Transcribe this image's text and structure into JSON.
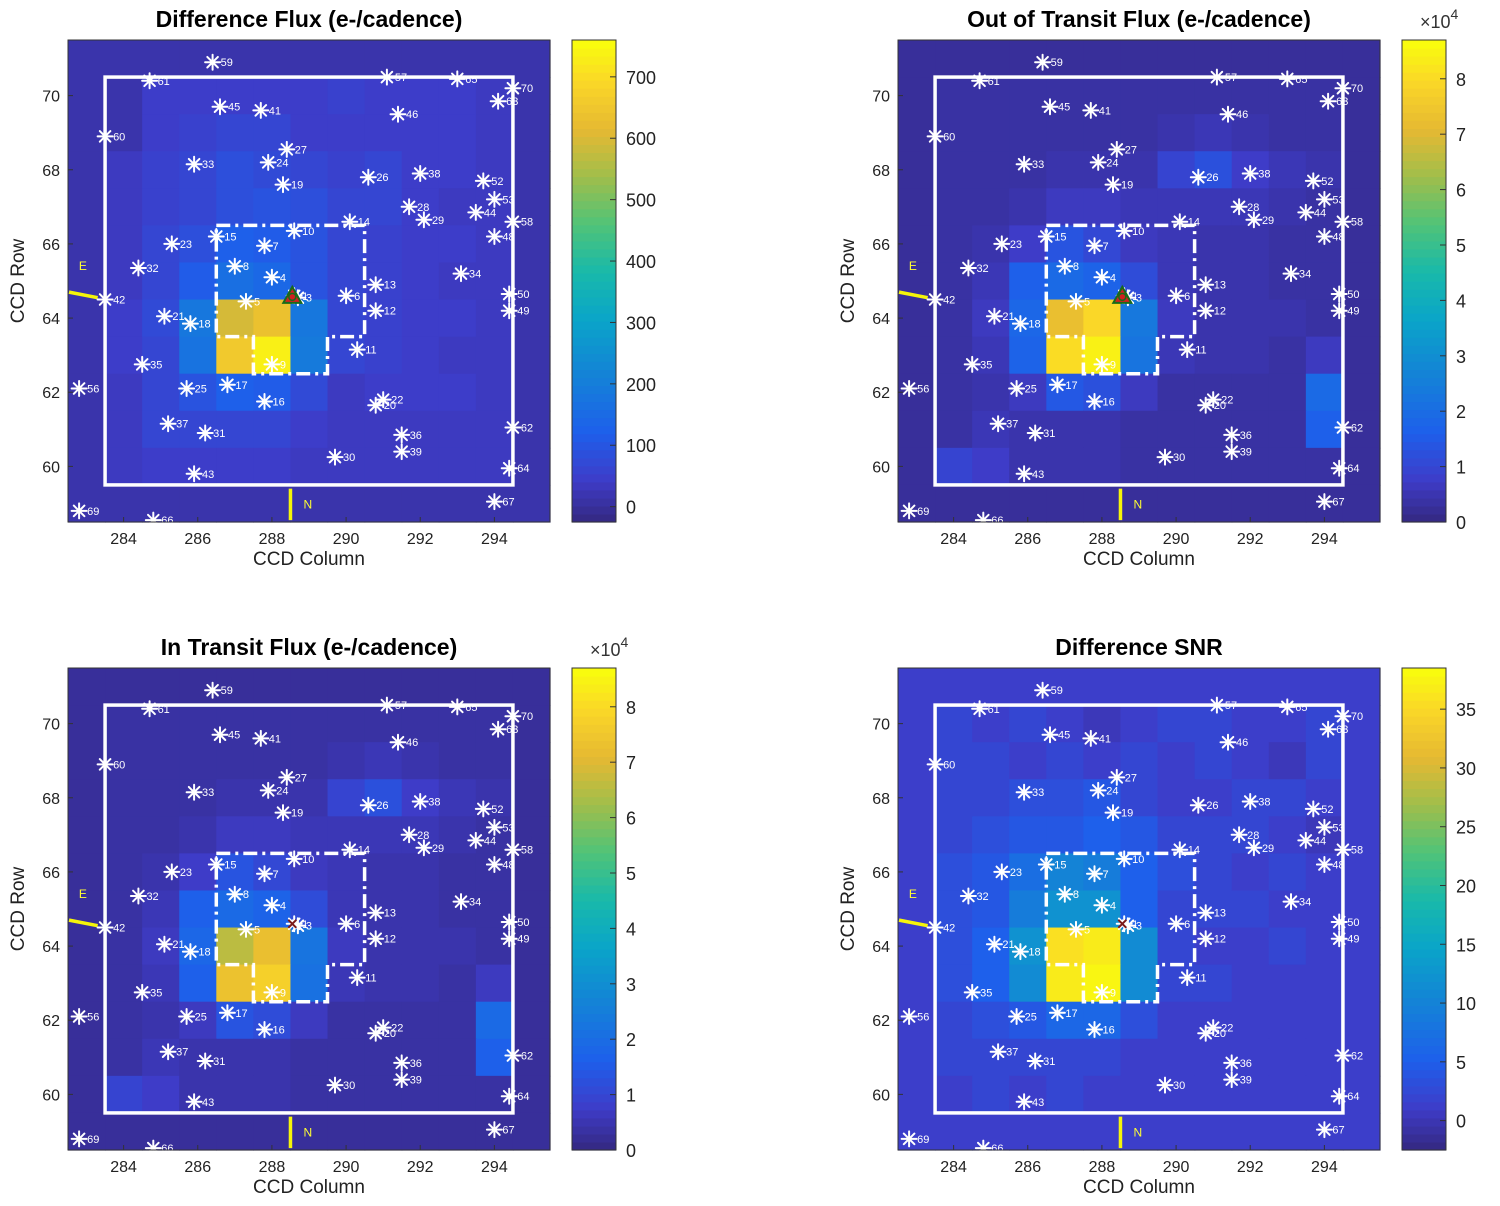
{
  "chart_data": [
    {
      "type": "heatmap",
      "title": "Difference Flux (e-/cadence)",
      "xlabel": "CCD Column",
      "ylabel": "CCD Row",
      "xlim": [
        282.5,
        295.5
      ],
      "ylim": [
        58.5,
        71.5
      ],
      "xticks": [
        "284",
        "286",
        "288",
        "290",
        "292",
        "294"
      ],
      "yticks": [
        "60",
        "62",
        "64",
        "66",
        "68",
        "70"
      ],
      "colorbar": {
        "min": -25,
        "max": 760,
        "ticks": [
          "0",
          "100",
          "200",
          "300",
          "400",
          "500",
          "600",
          "700"
        ],
        "exponent": ""
      },
      "grid": [
        [
          10,
          10,
          10,
          10,
          10,
          10,
          10,
          10,
          10,
          10,
          10,
          10,
          10
        ],
        [
          10,
          10,
          40,
          40,
          40,
          40,
          40,
          50,
          40,
          40,
          40,
          30,
          10
        ],
        [
          10,
          10,
          40,
          50,
          60,
          60,
          40,
          40,
          40,
          40,
          40,
          30,
          10
        ],
        [
          10,
          30,
          50,
          60,
          80,
          70,
          60,
          50,
          60,
          40,
          40,
          30,
          10
        ],
        [
          10,
          30,
          50,
          60,
          80,
          90,
          80,
          60,
          60,
          40,
          30,
          30,
          10
        ],
        [
          10,
          30,
          60,
          80,
          120,
          110,
          90,
          60,
          50,
          40,
          40,
          30,
          10
        ],
        [
          10,
          30,
          60,
          110,
          160,
          140,
          90,
          60,
          50,
          40,
          30,
          30,
          10
        ],
        [
          10,
          40,
          70,
          180,
          600,
          640,
          180,
          60,
          50,
          40,
          40,
          30,
          10
        ],
        [
          10,
          40,
          60,
          170,
          660,
          740,
          190,
          60,
          50,
          40,
          30,
          30,
          10
        ],
        [
          10,
          30,
          60,
          90,
          120,
          110,
          70,
          30,
          40,
          40,
          40,
          30,
          10
        ],
        [
          10,
          30,
          60,
          60,
          60,
          60,
          40,
          30,
          30,
          30,
          30,
          30,
          10
        ],
        [
          10,
          30,
          40,
          40,
          40,
          40,
          30,
          30,
          30,
          30,
          30,
          30,
          10
        ],
        [
          10,
          10,
          10,
          10,
          10,
          10,
          10,
          10,
          10,
          10,
          10,
          10,
          10
        ]
      ]
    },
    {
      "type": "heatmap",
      "title": "Out of Transit Flux (e-/cadence)",
      "xlabel": "CCD Column",
      "ylabel": "CCD Row",
      "xlim": [
        282.5,
        295.5
      ],
      "ylim": [
        58.5,
        71.5
      ],
      "xticks": [
        "284",
        "286",
        "288",
        "290",
        "292",
        "294"
      ],
      "yticks": [
        "60",
        "62",
        "64",
        "66",
        "68",
        "70"
      ],
      "colorbar": {
        "min": 0,
        "max": 8.7,
        "ticks": [
          "0",
          "1",
          "2",
          "3",
          "4",
          "5",
          "6",
          "7",
          "8"
        ],
        "exponent": "4"
      },
      "grid": [
        [
          0.2,
          0.2,
          0.2,
          0.2,
          0.2,
          0.2,
          0.2,
          0.2,
          0.2,
          0.2,
          0.2,
          0.2,
          0.2
        ],
        [
          0.2,
          0.3,
          0.3,
          0.3,
          0.3,
          0.3,
          0.3,
          0.3,
          0.3,
          0.3,
          0.3,
          0.3,
          0.2
        ],
        [
          0.2,
          0.3,
          0.3,
          0.3,
          0.3,
          0.3,
          0.3,
          0.4,
          0.5,
          0.4,
          0.3,
          0.3,
          0.2
        ],
        [
          0.2,
          0.3,
          0.3,
          0.3,
          0.4,
          0.4,
          0.4,
          0.9,
          1.2,
          0.7,
          0.5,
          0.4,
          0.2
        ],
        [
          0.2,
          0.3,
          0.3,
          0.4,
          0.6,
          0.6,
          0.5,
          0.5,
          0.5,
          0.5,
          0.4,
          0.3,
          0.2
        ],
        [
          0.2,
          0.3,
          0.4,
          0.7,
          1.3,
          1.0,
          0.6,
          0.5,
          0.4,
          0.4,
          0.3,
          0.3,
          0.2
        ],
        [
          0.2,
          0.3,
          0.5,
          1.6,
          1.9,
          1.7,
          1.1,
          0.5,
          0.4,
          0.4,
          0.3,
          0.3,
          0.2
        ],
        [
          0.2,
          0.3,
          0.6,
          1.8,
          7.3,
          8.0,
          2.3,
          0.6,
          0.4,
          0.4,
          0.4,
          0.3,
          0.2
        ],
        [
          0.2,
          0.3,
          0.5,
          1.7,
          8.1,
          8.5,
          2.2,
          0.5,
          0.4,
          0.4,
          0.3,
          0.6,
          0.2
        ],
        [
          0.2,
          0.3,
          0.4,
          0.6,
          1.4,
          1.2,
          0.6,
          0.3,
          0.3,
          0.3,
          0.3,
          1.9,
          0.2
        ],
        [
          0.2,
          0.3,
          0.5,
          0.4,
          0.4,
          0.4,
          0.3,
          0.3,
          0.3,
          0.3,
          0.3,
          1.6,
          0.2
        ],
        [
          0.2,
          0.9,
          0.7,
          0.4,
          0.4,
          0.4,
          0.3,
          0.3,
          0.3,
          0.3,
          0.3,
          0.3,
          0.2
        ],
        [
          0.2,
          0.2,
          0.2,
          0.2,
          0.2,
          0.2,
          0.2,
          0.2,
          0.2,
          0.2,
          0.2,
          0.2,
          0.2
        ]
      ]
    },
    {
      "type": "heatmap",
      "title": "In Transit Flux (e-/cadence)",
      "xlabel": "CCD Column",
      "ylabel": "CCD Row",
      "xlim": [
        282.5,
        295.5
      ],
      "ylim": [
        58.5,
        71.5
      ],
      "xticks": [
        "284",
        "286",
        "288",
        "290",
        "292",
        "294"
      ],
      "yticks": [
        "60",
        "62",
        "64",
        "66",
        "68",
        "70"
      ],
      "colorbar": {
        "min": 0,
        "max": 8.7,
        "ticks": [
          "0",
          "1",
          "2",
          "3",
          "4",
          "5",
          "6",
          "7",
          "8"
        ],
        "exponent": "4"
      },
      "grid": [
        [
          0.2,
          0.2,
          0.2,
          0.2,
          0.2,
          0.2,
          0.2,
          0.2,
          0.2,
          0.2,
          0.2,
          0.2,
          0.2
        ],
        [
          0.2,
          0.3,
          0.3,
          0.3,
          0.3,
          0.3,
          0.3,
          0.3,
          0.3,
          0.3,
          0.3,
          0.3,
          0.2
        ],
        [
          0.2,
          0.3,
          0.3,
          0.3,
          0.3,
          0.3,
          0.3,
          0.4,
          0.5,
          0.4,
          0.3,
          0.3,
          0.2
        ],
        [
          0.2,
          0.3,
          0.3,
          0.3,
          0.4,
          0.4,
          0.4,
          0.9,
          1.2,
          0.7,
          0.5,
          0.4,
          0.2
        ],
        [
          0.2,
          0.3,
          0.3,
          0.4,
          0.6,
          0.6,
          0.5,
          0.5,
          0.5,
          0.5,
          0.4,
          0.3,
          0.2
        ],
        [
          0.2,
          0.3,
          0.4,
          0.7,
          1.3,
          1.0,
          0.6,
          0.5,
          0.4,
          0.4,
          0.3,
          0.3,
          0.2
        ],
        [
          0.2,
          0.3,
          0.5,
          1.6,
          1.9,
          1.7,
          1.1,
          0.5,
          0.4,
          0.4,
          0.3,
          0.3,
          0.2
        ],
        [
          0.2,
          0.3,
          0.6,
          1.8,
          6.6,
          7.3,
          2.2,
          0.6,
          0.4,
          0.4,
          0.4,
          0.3,
          0.2
        ],
        [
          0.2,
          0.3,
          0.5,
          1.6,
          7.4,
          7.8,
          2.1,
          0.5,
          0.4,
          0.4,
          0.3,
          0.6,
          0.2
        ],
        [
          0.2,
          0.3,
          0.4,
          0.6,
          1.3,
          1.1,
          0.6,
          0.3,
          0.3,
          0.3,
          0.3,
          1.9,
          0.2
        ],
        [
          0.2,
          0.3,
          0.5,
          0.4,
          0.4,
          0.4,
          0.3,
          0.3,
          0.3,
          0.3,
          0.3,
          1.6,
          0.2
        ],
        [
          0.2,
          0.9,
          0.7,
          0.4,
          0.4,
          0.4,
          0.3,
          0.3,
          0.3,
          0.3,
          0.3,
          0.3,
          0.2
        ],
        [
          0.2,
          0.2,
          0.2,
          0.2,
          0.2,
          0.2,
          0.2,
          0.2,
          0.2,
          0.2,
          0.2,
          0.2,
          0.2
        ]
      ]
    },
    {
      "type": "heatmap",
      "title": "Difference SNR",
      "xlabel": "CCD Column",
      "ylabel": "CCD Row",
      "xlim": [
        282.5,
        295.5
      ],
      "ylim": [
        58.5,
        71.5
      ],
      "xticks": [
        "284",
        "286",
        "288",
        "290",
        "292",
        "294"
      ],
      "yticks": [
        "60",
        "62",
        "64",
        "66",
        "68",
        "70"
      ],
      "colorbar": {
        "min": -2.5,
        "max": 38.5,
        "ticks": [
          "0",
          "5",
          "10",
          "15",
          "20",
          "25",
          "30",
          "35"
        ],
        "exponent": ""
      },
      "grid": [
        [
          1,
          1,
          1,
          1,
          1,
          1,
          1,
          1,
          1,
          1,
          1,
          1,
          1
        ],
        [
          1,
          2,
          1,
          2,
          1,
          0,
          1,
          2,
          2,
          1,
          1,
          2,
          1
        ],
        [
          1,
          2,
          2,
          1,
          2,
          1,
          2,
          1,
          2,
          1,
          0,
          2,
          1
        ],
        [
          1,
          2,
          2,
          3,
          3,
          4,
          2,
          1,
          1,
          2,
          2,
          1,
          1
        ],
        [
          1,
          2,
          3,
          4,
          4,
          5,
          4,
          2,
          2,
          2,
          1,
          0,
          1
        ],
        [
          1,
          3,
          4,
          7,
          10,
          9,
          5,
          3,
          2,
          1,
          2,
          1,
          1
        ],
        [
          1,
          3,
          4,
          9,
          12,
          12,
          5,
          2,
          2,
          2,
          1,
          1,
          1
        ],
        [
          1,
          3,
          5,
          12,
          36,
          37,
          11,
          2,
          1,
          1,
          2,
          1,
          1
        ],
        [
          1,
          3,
          5,
          11,
          37,
          38,
          11,
          2,
          2,
          1,
          1,
          1,
          1
        ],
        [
          1,
          2,
          3,
          4,
          6,
          6,
          3,
          1,
          1,
          1,
          1,
          1,
          1
        ],
        [
          1,
          2,
          2,
          2,
          2,
          2,
          1,
          1,
          1,
          1,
          1,
          1,
          1
        ],
        [
          1,
          1,
          2,
          1,
          2,
          1,
          1,
          1,
          1,
          1,
          1,
          1,
          1
        ],
        [
          1,
          1,
          1,
          1,
          1,
          1,
          1,
          1,
          1,
          1,
          1,
          1,
          1
        ]
      ]
    }
  ],
  "stars": [
    {
      "id": "1",
      "col": 288.6,
      "row": 64.6
    },
    {
      "id": "3",
      "col": 288.7,
      "row": 64.55
    },
    {
      "id": "4",
      "col": 288.0,
      "row": 65.1
    },
    {
      "id": "5",
      "col": 287.3,
      "row": 64.45
    },
    {
      "id": "6",
      "col": 290.0,
      "row": 64.6
    },
    {
      "id": "7",
      "col": 287.8,
      "row": 65.95
    },
    {
      "id": "8",
      "col": 287.0,
      "row": 65.4
    },
    {
      "id": "9",
      "col": 288.0,
      "row": 62.75
    },
    {
      "id": "10",
      "col": 288.6,
      "row": 66.35
    },
    {
      "id": "11",
      "col": 290.3,
      "row": 63.15
    },
    {
      "id": "12",
      "col": 290.8,
      "row": 64.2
    },
    {
      "id": "13",
      "col": 290.8,
      "row": 64.9
    },
    {
      "id": "14",
      "col": 290.1,
      "row": 66.6
    },
    {
      "id": "15",
      "col": 286.5,
      "row": 66.2
    },
    {
      "id": "16",
      "col": 287.8,
      "row": 61.75
    },
    {
      "id": "17",
      "col": 286.8,
      "row": 62.2
    },
    {
      "id": "18",
      "col": 285.8,
      "row": 63.85
    },
    {
      "id": "19",
      "col": 288.3,
      "row": 67.6
    },
    {
      "id": "20",
      "col": 290.8,
      "row": 61.65
    },
    {
      "id": "21",
      "col": 285.1,
      "row": 64.05
    },
    {
      "id": "22",
      "col": 291.0,
      "row": 61.8
    },
    {
      "id": "23",
      "col": 285.3,
      "row": 66.0
    },
    {
      "id": "24",
      "col": 287.9,
      "row": 68.2
    },
    {
      "id": "25",
      "col": 285.7,
      "row": 62.1
    },
    {
      "id": "26",
      "col": 290.6,
      "row": 67.8
    },
    {
      "id": "27",
      "col": 288.4,
      "row": 68.55
    },
    {
      "id": "28",
      "col": 291.7,
      "row": 67.0
    },
    {
      "id": "29",
      "col": 292.1,
      "row": 66.65
    },
    {
      "id": "30",
      "col": 289.7,
      "row": 60.25
    },
    {
      "id": "31",
      "col": 286.2,
      "row": 60.9
    },
    {
      "id": "32",
      "col": 284.4,
      "row": 65.35
    },
    {
      "id": "33",
      "col": 285.9,
      "row": 68.15
    },
    {
      "id": "34",
      "col": 293.1,
      "row": 65.2
    },
    {
      "id": "35",
      "col": 284.5,
      "row": 62.75
    },
    {
      "id": "36",
      "col": 291.5,
      "row": 60.85
    },
    {
      "id": "37",
      "col": 285.2,
      "row": 61.15
    },
    {
      "id": "38",
      "col": 292.0,
      "row": 67.9
    },
    {
      "id": "39",
      "col": 291.5,
      "row": 60.4
    },
    {
      "id": "41",
      "col": 287.7,
      "row": 69.6
    },
    {
      "id": "42",
      "col": 283.5,
      "row": 64.5
    },
    {
      "id": "43",
      "col": 285.9,
      "row": 59.8
    },
    {
      "id": "44",
      "col": 293.5,
      "row": 66.85
    },
    {
      "id": "45",
      "col": 286.6,
      "row": 69.7
    },
    {
      "id": "46",
      "col": 291.4,
      "row": 69.5
    },
    {
      "id": "48",
      "col": 294.0,
      "row": 66.2
    },
    {
      "id": "49",
      "col": 294.4,
      "row": 64.2
    },
    {
      "id": "50",
      "col": 294.4,
      "row": 64.65
    },
    {
      "id": "52",
      "col": 293.7,
      "row": 67.7
    },
    {
      "id": "53",
      "col": 294.0,
      "row": 67.2
    },
    {
      "id": "56",
      "col": 282.8,
      "row": 62.1
    },
    {
      "id": "57",
      "col": 291.1,
      "row": 70.5
    },
    {
      "id": "58",
      "col": 294.5,
      "row": 66.6
    },
    {
      "id": "59",
      "col": 286.4,
      "row": 70.9
    },
    {
      "id": "60",
      "col": 283.5,
      "row": 68.9
    },
    {
      "id": "61",
      "col": 284.7,
      "row": 70.4
    },
    {
      "id": "62",
      "col": 294.5,
      "row": 61.05
    },
    {
      "id": "63",
      "col": 294.1,
      "row": 69.85
    },
    {
      "id": "64",
      "col": 294.4,
      "row": 59.95
    },
    {
      "id": "65",
      "col": 293.0,
      "row": 70.45
    },
    {
      "id": "66",
      "col": 284.8,
      "row": 58.55
    },
    {
      "id": "67",
      "col": 294.0,
      "row": 59.05
    },
    {
      "id": "69",
      "col": 282.8,
      "row": 58.8
    },
    {
      "id": "70",
      "col": 294.5,
      "row": 70.2
    }
  ],
  "compass": {
    "north": "N",
    "east": "E"
  },
  "colors": {
    "star": "#ffffff",
    "aperture": "#ffffff",
    "compass": "#f5f50a",
    "marker_fill": "#d02020",
    "marker_edge": "#1a6a1a"
  }
}
